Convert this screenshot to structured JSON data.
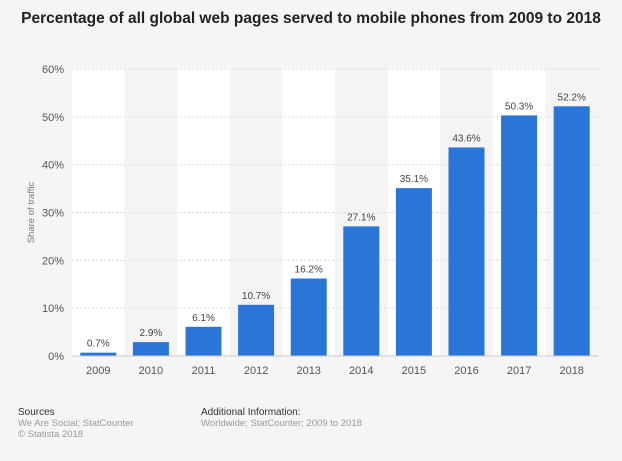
{
  "chart_data": {
    "type": "bar",
    "title": "Percentage of all global web pages served to mobile phones from 2009 to 2018",
    "xlabel": "",
    "ylabel": "Share of traffic",
    "categories": [
      "2009",
      "2010",
      "2011",
      "2012",
      "2013",
      "2014",
      "2015",
      "2016",
      "2017",
      "2018"
    ],
    "values": [
      0.7,
      2.9,
      6.1,
      10.7,
      16.2,
      27.1,
      35.1,
      43.6,
      50.3,
      52.2
    ],
    "value_labels": [
      "0.7%",
      "2.9%",
      "6.1%",
      "10.7%",
      "16.2%",
      "27.1%",
      "35.1%",
      "43.6%",
      "50.3%",
      "52.2%"
    ],
    "ylim": [
      0,
      60
    ],
    "yticks": [
      0,
      10,
      20,
      30,
      40,
      50,
      60
    ],
    "ytick_labels": [
      "0%",
      "10%",
      "20%",
      "30%",
      "40%",
      "50%",
      "60%"
    ],
    "grid": true,
    "legend": "none",
    "bar_color": "#2a75d8"
  },
  "footer": {
    "sources_heading": "Sources",
    "sources_line1": "We Are Social; StatCounter",
    "sources_line2": "© Statista 2018",
    "info_heading": "Additional Information:",
    "info_line1": "Worldwide; StatCounter; 2009 to 2018"
  }
}
